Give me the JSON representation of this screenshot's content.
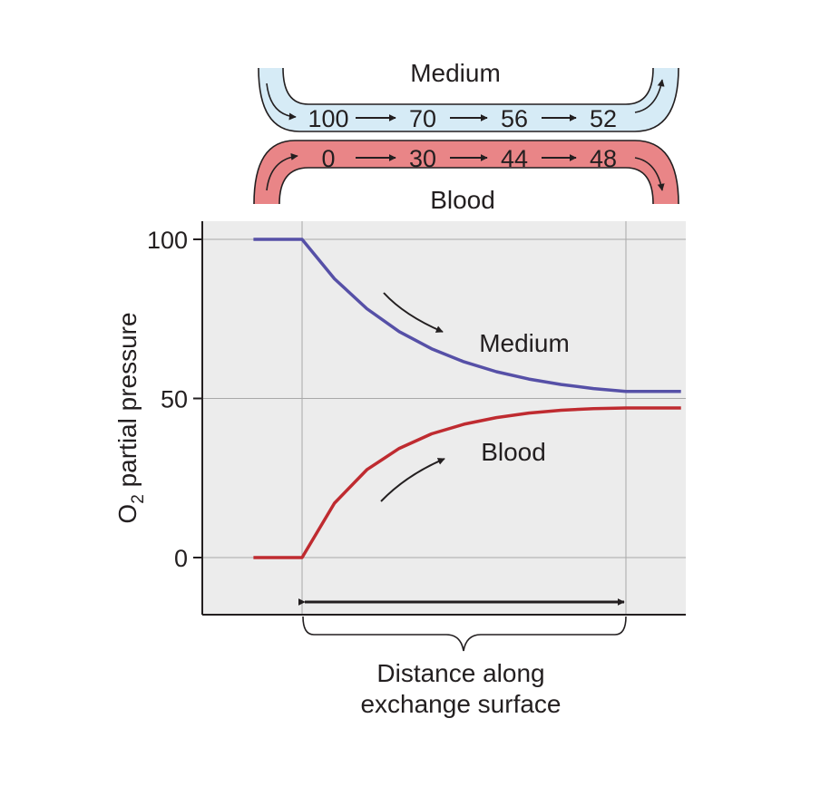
{
  "channels": {
    "medium": {
      "label": "Medium",
      "values": [
        "100",
        "70",
        "56",
        "52"
      ],
      "fill": "#d6ebf6"
    },
    "blood": {
      "label": "Blood",
      "values": [
        "0",
        "30",
        "44",
        "48"
      ],
      "fill": "#e98587"
    }
  },
  "chart_data": {
    "type": "line",
    "title": "",
    "xlabel": "Distance along exchange surface",
    "ylabel": "O2 partial pressure",
    "ylabel_main": "O",
    "ylabel_sub": "2",
    "ylabel_rest": " partial pressure",
    "ylim": [
      -18,
      106
    ],
    "yticks": [
      0,
      50,
      100
    ],
    "ytick_labels": [
      "0",
      "50",
      "100"
    ],
    "grid": true,
    "x_labels": [
      "Distance along",
      "exchange surface"
    ],
    "series": [
      {
        "name": "Medium",
        "color": "#5650a7",
        "x": [
          -0.15,
          0,
          0.1,
          0.2,
          0.3,
          0.4,
          0.5,
          0.6,
          0.7,
          0.8,
          0.9,
          1.0,
          1.17
        ],
        "y": [
          100,
          100,
          87.6,
          78.2,
          71,
          65.6,
          61.5,
          58.4,
          56.1,
          54.4,
          53.1,
          52.2,
          52.2
        ]
      },
      {
        "name": "Blood",
        "color": "#bf2b30",
        "x": [
          -0.15,
          0,
          0.1,
          0.2,
          0.3,
          0.4,
          0.5,
          0.6,
          0.7,
          0.8,
          0.9,
          1.0,
          1.17
        ],
        "y": [
          0,
          0,
          17.1,
          27.6,
          34.3,
          38.9,
          41.9,
          44,
          45.4,
          46.3,
          46.8,
          47,
          47
        ]
      }
    ],
    "colors": {
      "plot_background": "#ececec",
      "grid": "#a9a9a9",
      "axis": "#231f20"
    }
  }
}
